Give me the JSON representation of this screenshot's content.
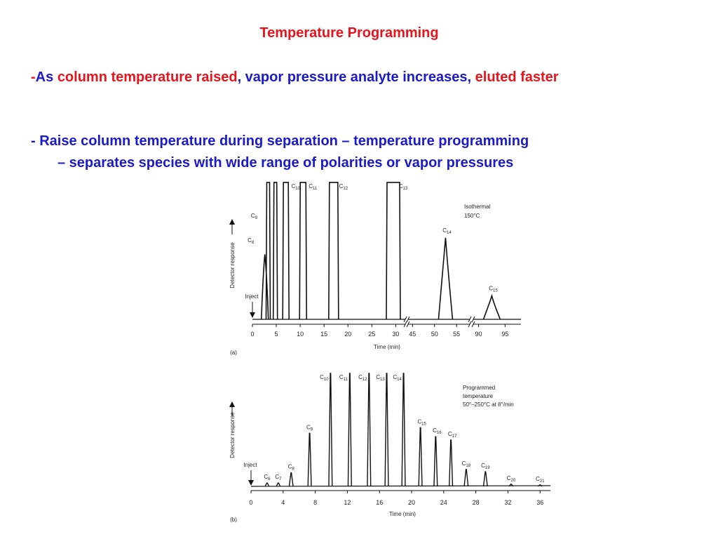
{
  "slide": {
    "title": "Temperature Programming",
    "bullet1": {
      "dash": "-",
      "p1": "As",
      "p2": "column temperature raised",
      "p3": ", vapor pressure analyte increases,",
      "p4": "eluted faster"
    },
    "bullet2": {
      "line1": "- Raise column temperature during separation – temperature programming",
      "line2": "– separates species with wide range of polarities or vapor pressures"
    }
  },
  "colors": {
    "red": "#e8131b",
    "blue": "#1a1acc",
    "trace": "#111111"
  },
  "chart_data": [
    {
      "type": "line",
      "panel_label": "(a)",
      "annotation": [
        "Isothermal",
        "150°C"
      ],
      "inject_label": "Inject",
      "xlabel": "Time (min)",
      "ylabel": "Detector response",
      "x_ticks": [
        "0",
        "5",
        "10",
        "15",
        "20",
        "25",
        "30",
        "45",
        "50",
        "55",
        "90",
        "95"
      ],
      "axis_breaks": [
        "30–45",
        "55–90"
      ],
      "peaks": [
        {
          "label": "C",
          "sub": "8",
          "time": 2.6,
          "height": 0.47
        },
        {
          "label": "C",
          "sub": "9",
          "time": 3.3,
          "height": 0.99
        },
        {
          "label": "C",
          "sub": "",
          "time": 4.8,
          "height": 0.99
        },
        {
          "label": "C",
          "sub": "10",
          "time": 7.0,
          "height": 0.99
        },
        {
          "label": "C",
          "sub": "11",
          "time": 10.6,
          "height": 0.99
        },
        {
          "label": "C",
          "sub": "12",
          "time": 17.0,
          "height": 0.99
        },
        {
          "label": "C",
          "sub": "13",
          "time": 29.5,
          "height": 0.99
        },
        {
          "label": "C",
          "sub": "14",
          "time": 52.5,
          "height": 0.59
        },
        {
          "label": "C",
          "sub": "15",
          "time": 92.5,
          "height": 0.17
        }
      ]
    },
    {
      "type": "line",
      "panel_label": "(b)",
      "annotation": [
        "Programmed",
        "temperature",
        "50°–250°C at 8°/min"
      ],
      "inject_label": "Inject",
      "xlabel": "Time (min)",
      "ylabel": "Detector response",
      "x_ticks": [
        "0",
        "4",
        "8",
        "12",
        "16",
        "20",
        "24",
        "28",
        "32",
        "36"
      ],
      "xlim": [
        0,
        37
      ],
      "peaks": [
        {
          "label": "C",
          "sub": "6",
          "time": 2.0,
          "height": 0.03
        },
        {
          "label": "C",
          "sub": "7",
          "time": 3.4,
          "height": 0.03
        },
        {
          "label": "C",
          "sub": "8",
          "time": 5.0,
          "height": 0.12
        },
        {
          "label": "C",
          "sub": "9",
          "time": 7.3,
          "height": 0.47
        },
        {
          "label": "C",
          "sub": "10",
          "time": 9.9,
          "height": 1.0
        },
        {
          "label": "C",
          "sub": "11",
          "time": 12.3,
          "height": 1.0
        },
        {
          "label": "C",
          "sub": "12",
          "time": 14.7,
          "height": 1.0
        },
        {
          "label": "C",
          "sub": "13",
          "time": 16.9,
          "height": 1.0
        },
        {
          "label": "C",
          "sub": "14",
          "time": 19.0,
          "height": 1.0
        },
        {
          "label": "C",
          "sub": "15",
          "time": 21.1,
          "height": 0.52
        },
        {
          "label": "C",
          "sub": "16",
          "time": 23.0,
          "height": 0.44
        },
        {
          "label": "C",
          "sub": "17",
          "time": 24.9,
          "height": 0.41
        },
        {
          "label": "C",
          "sub": "18",
          "time": 26.8,
          "height": 0.15
        },
        {
          "label": "C",
          "sub": "19",
          "time": 29.2,
          "height": 0.13
        },
        {
          "label": "C",
          "sub": "20",
          "time": 32.4,
          "height": 0.02
        },
        {
          "label": "C",
          "sub": "21",
          "time": 36.0,
          "height": 0.01
        }
      ]
    }
  ]
}
